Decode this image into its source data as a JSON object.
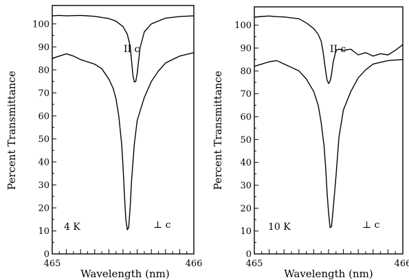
{
  "chart_data": [
    {
      "type": "line",
      "xlabel": "Wavelength (nm)",
      "ylabel": "Percent Transmittance",
      "xlim": [
        465,
        466
      ],
      "ylim": [
        0,
        108
      ],
      "xticks": [
        "465",
        "466"
      ],
      "yticks": [
        "0",
        "10",
        "20",
        "30",
        "40",
        "50",
        "60",
        "70",
        "80",
        "90",
        "100"
      ],
      "temperature_label": "4 K",
      "annotations": {
        "parallel": "II c",
        "perpendicular": "⊥ c"
      },
      "series": [
        {
          "x": [
            465.0,
            465.05,
            465.1,
            465.2,
            465.3,
            465.4,
            465.45,
            465.5,
            465.53,
            465.55,
            465.56,
            465.57,
            465.58,
            465.59,
            465.6,
            465.62,
            465.65,
            465.7,
            465.8,
            465.9,
            466.0
          ],
          "y": [
            103.5,
            103.7,
            103.5,
            103.7,
            103.3,
            102.3,
            101.2,
            98.8,
            95.5,
            90.5,
            84.0,
            77.5,
            74.7,
            75.0,
            78.5,
            89.5,
            96.5,
            100.0,
            102.5,
            103.2,
            103.5
          ]
        },
        {
          "x": [
            465.0,
            465.05,
            465.1,
            465.15,
            465.2,
            465.3,
            465.35,
            465.4,
            465.43,
            465.45,
            465.47,
            465.49,
            465.5,
            465.51,
            465.52,
            465.53,
            465.54,
            465.55,
            465.56,
            465.58,
            465.6,
            465.65,
            465.7,
            465.75,
            465.8,
            465.9,
            466.0
          ],
          "y": [
            85.0,
            86.0,
            87.0,
            86.0,
            84.5,
            82.5,
            80.5,
            76.0,
            72.0,
            67.5,
            60.0,
            48.0,
            38.0,
            25.0,
            15.0,
            10.5,
            11.5,
            20.0,
            32.0,
            48.0,
            58.0,
            68.0,
            75.0,
            79.5,
            83.0,
            86.0,
            87.5
          ]
        }
      ]
    },
    {
      "type": "line",
      "xlabel": "Wavelength (nm)",
      "ylabel": "Percent Transmittance",
      "xlim": [
        465,
        466
      ],
      "ylim": [
        0,
        108
      ],
      "xticks": [
        "465",
        "466"
      ],
      "yticks": [
        "0",
        "10",
        "20",
        "30",
        "40",
        "50",
        "60",
        "70",
        "80",
        "90",
        "100"
      ],
      "temperature_label": "10 K",
      "annotations": {
        "parallel": "II c",
        "perpendicular": "⊥ c"
      },
      "series": [
        {
          "x": [
            465.0,
            465.05,
            465.1,
            465.15,
            465.2,
            465.3,
            465.35,
            465.4,
            465.43,
            465.45,
            465.46,
            465.47,
            465.48,
            465.49,
            465.5,
            465.51,
            465.52,
            465.53,
            465.55,
            465.57,
            465.6,
            465.65,
            465.7,
            465.75,
            465.8,
            465.85,
            465.9,
            465.95,
            466.0
          ],
          "y": [
            103.5,
            103.8,
            104.0,
            103.7,
            103.6,
            102.8,
            101.0,
            98.5,
            96.0,
            93.0,
            89.5,
            85.0,
            80.0,
            76.0,
            74.5,
            75.5,
            78.5,
            83.5,
            89.0,
            89.5,
            89.0,
            89.5,
            87.0,
            88.0,
            86.5,
            87.5,
            87.0,
            89.0,
            91.5
          ]
        },
        {
          "x": [
            465.0,
            465.1,
            465.15,
            465.2,
            465.3,
            465.35,
            465.4,
            465.43,
            465.45,
            465.47,
            465.48,
            465.49,
            465.5,
            465.51,
            465.52,
            465.53,
            465.55,
            465.57,
            465.6,
            465.65,
            465.7,
            465.75,
            465.8,
            465.9,
            466.0
          ],
          "y": [
            82.0,
            84.0,
            84.5,
            83.0,
            80.0,
            76.5,
            71.0,
            65.0,
            57.5,
            47.0,
            38.0,
            27.0,
            18.0,
            11.5,
            12.0,
            19.0,
            34.0,
            51.0,
            63.0,
            71.0,
            77.0,
            80.5,
            83.0,
            84.5,
            85.0
          ]
        }
      ]
    }
  ]
}
